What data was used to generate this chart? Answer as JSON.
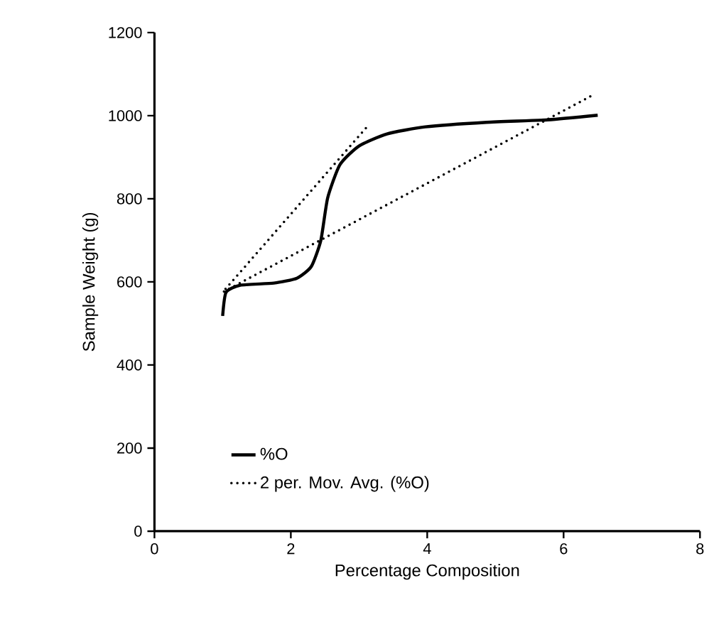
{
  "chart_data": {
    "type": "line",
    "xlabel": "Percentage Composition",
    "ylabel": "Sample Weight (g)",
    "xlim": [
      0,
      8
    ],
    "xticks": [
      0,
      2,
      4,
      6,
      8
    ],
    "ylim": [
      0,
      1200
    ],
    "yticks": [
      0,
      200,
      400,
      600,
      800,
      1000,
      1200
    ],
    "grid": false,
    "legend": "bottom",
    "marker": "none",
    "series": [
      {
        "name": "%O",
        "color": "#000000",
        "line_style": "solid",
        "x": [
          1.0,
          1.05,
          1.26,
          1.75,
          2.09,
          2.3,
          2.44,
          2.54,
          2.72,
          3.0,
          3.41,
          3.97,
          4.87,
          5.77,
          6.5
        ],
        "values": [
          518,
          575,
          592,
          597,
          609,
          637,
          700,
          802,
          882,
          927,
          956,
          973,
          984,
          990,
          1001
        ]
      },
      {
        "name": "2 per. Mov. Avg. (%O)",
        "color": "#000000",
        "line_style": "dotted",
        "x": [
          3.1,
          1.0,
          6.4
        ],
        "values": [
          970,
          575,
          1047
        ]
      }
    ]
  }
}
